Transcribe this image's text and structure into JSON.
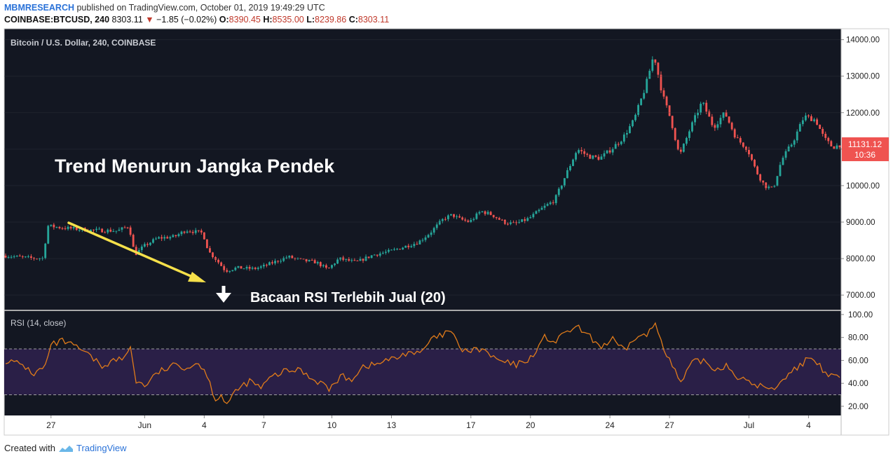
{
  "header": {
    "publisher": "MBMRESEARCH",
    "published_text": "published on TradingView.com, October 01, 2019 19:49:29 UTC",
    "symbol": "COINBASE:BTCUSD, 240",
    "last": "8303.11",
    "change_arrow": "▼",
    "change": "−1.85 (−0.02%)",
    "o_label": "O:",
    "o_val": "8390.45",
    "h_label": "H:",
    "h_val": "8535.00",
    "l_label": "L:",
    "l_val": "8239.86",
    "c_label": "C:",
    "c_val": "8303.11"
  },
  "footer": {
    "created_with": "Created with",
    "brand": "TradingView"
  },
  "colors": {
    "bg": "#131722",
    "up": "#26a69a",
    "down": "#ef5350",
    "rsi_line": "#e07b1a",
    "rsi_band": "#2a1f47",
    "arrow": "#f5e04a",
    "grid": "#363a45",
    "axis_text": "#222222"
  },
  "chart_data": {
    "type": "candlestick",
    "title": "Bitcoin / U.S. Dollar, 240, COINBASE",
    "price_axis": {
      "ticks": [
        7000,
        8000,
        9000,
        10000,
        11000,
        12000,
        13000,
        14000
      ],
      "tick_labels": [
        "7000.00",
        "8000.00",
        "9000.00",
        "10000.00",
        "11000.00",
        "12000.00",
        "13000.00",
        "14000.00"
      ],
      "range": [
        6600,
        14300
      ]
    },
    "price_label": "11131.12",
    "countdown_label": "10:36",
    "x_ticks": [
      "27",
      "Jun",
      "4",
      "7",
      "10",
      "13",
      "17",
      "20",
      "24",
      "27",
      "Jul",
      "4"
    ],
    "x_tick_index": [
      16,
      49,
      70,
      91,
      115,
      136,
      164,
      185,
      213,
      234,
      262,
      283
    ],
    "candle_count": 295,
    "close_anchors": [
      [
        0,
        8080
      ],
      [
        10,
        8010
      ],
      [
        14,
        8010
      ],
      [
        15,
        8900
      ],
      [
        20,
        8850
      ],
      [
        30,
        8780
      ],
      [
        40,
        8760
      ],
      [
        44,
        8900
      ],
      [
        46,
        8100
      ],
      [
        49,
        8330
      ],
      [
        54,
        8560
      ],
      [
        60,
        8600
      ],
      [
        64,
        8780
      ],
      [
        70,
        8700
      ],
      [
        72,
        8200
      ],
      [
        75,
        7950
      ],
      [
        78,
        7660
      ],
      [
        82,
        7750
      ],
      [
        88,
        7720
      ],
      [
        91,
        7780
      ],
      [
        95,
        7900
      ],
      [
        100,
        8050
      ],
      [
        105,
        7950
      ],
      [
        110,
        7900
      ],
      [
        114,
        7700
      ],
      [
        118,
        8000
      ],
      [
        124,
        7900
      ],
      [
        130,
        8100
      ],
      [
        136,
        8200
      ],
      [
        140,
        8300
      ],
      [
        146,
        8450
      ],
      [
        150,
        8700
      ],
      [
        155,
        9100
      ],
      [
        158,
        9200
      ],
      [
        160,
        9100
      ],
      [
        164,
        9000
      ],
      [
        168,
        9300
      ],
      [
        172,
        9200
      ],
      [
        176,
        9000
      ],
      [
        180,
        8950
      ],
      [
        185,
        9100
      ],
      [
        190,
        9400
      ],
      [
        194,
        9600
      ],
      [
        198,
        10300
      ],
      [
        202,
        11000
      ],
      [
        206,
        10800
      ],
      [
        210,
        10750
      ],
      [
        214,
        11000
      ],
      [
        218,
        11300
      ],
      [
        222,
        11800
      ],
      [
        226,
        12700
      ],
      [
        229,
        13600
      ],
      [
        232,
        12500
      ],
      [
        235,
        11800
      ],
      [
        238,
        10800
      ],
      [
        242,
        11600
      ],
      [
        246,
        12300
      ],
      [
        250,
        11600
      ],
      [
        254,
        12000
      ],
      [
        258,
        11300
      ],
      [
        262,
        11000
      ],
      [
        265,
        10400
      ],
      [
        268,
        10000
      ],
      [
        271,
        9900
      ],
      [
        274,
        10700
      ],
      [
        278,
        11200
      ],
      [
        282,
        11900
      ],
      [
        286,
        11800
      ],
      [
        289,
        11300
      ],
      [
        292,
        11050
      ],
      [
        295,
        11131
      ]
    ],
    "rsi": {
      "label": "RSI (14, close)",
      "ticks": [
        20,
        40,
        60,
        80,
        100
      ],
      "tick_labels": [
        "20.00",
        "40.00",
        "60.00",
        "80.00",
        "100.00"
      ],
      "range": [
        12,
        103
      ],
      "upper_band": 70,
      "lower_band": 30,
      "anchors": [
        [
          0,
          60
        ],
        [
          6,
          56
        ],
        [
          10,
          48
        ],
        [
          14,
          55
        ],
        [
          16,
          73
        ],
        [
          20,
          77
        ],
        [
          26,
          70
        ],
        [
          30,
          63
        ],
        [
          34,
          55
        ],
        [
          38,
          60
        ],
        [
          42,
          62
        ],
        [
          44,
          72
        ],
        [
          46,
          42
        ],
        [
          49,
          38
        ],
        [
          54,
          50
        ],
        [
          60,
          56
        ],
        [
          64,
          54
        ],
        [
          68,
          58
        ],
        [
          70,
          52
        ],
        [
          72,
          40
        ],
        [
          74,
          26
        ],
        [
          76,
          30
        ],
        [
          78,
          22
        ],
        [
          82,
          35
        ],
        [
          86,
          42
        ],
        [
          90,
          36
        ],
        [
          94,
          46
        ],
        [
          98,
          50
        ],
        [
          104,
          52
        ],
        [
          108,
          44
        ],
        [
          112,
          40
        ],
        [
          114,
          34
        ],
        [
          118,
          46
        ],
        [
          122,
          44
        ],
        [
          126,
          55
        ],
        [
          130,
          56
        ],
        [
          134,
          60
        ],
        [
          138,
          62
        ],
        [
          142,
          68
        ],
        [
          146,
          65
        ],
        [
          150,
          78
        ],
        [
          154,
          82
        ],
        [
          157,
          86
        ],
        [
          160,
          70
        ],
        [
          164,
          68
        ],
        [
          168,
          70
        ],
        [
          172,
          62
        ],
        [
          176,
          58
        ],
        [
          180,
          56
        ],
        [
          185,
          62
        ],
        [
          190,
          80
        ],
        [
          194,
          76
        ],
        [
          198,
          86
        ],
        [
          202,
          88
        ],
        [
          206,
          80
        ],
        [
          210,
          72
        ],
        [
          214,
          78
        ],
        [
          218,
          68
        ],
        [
          222,
          80
        ],
        [
          226,
          82
        ],
        [
          229,
          92
        ],
        [
          232,
          72
        ],
        [
          235,
          55
        ],
        [
          238,
          40
        ],
        [
          242,
          58
        ],
        [
          246,
          60
        ],
        [
          250,
          52
        ],
        [
          254,
          56
        ],
        [
          258,
          46
        ],
        [
          262,
          40
        ],
        [
          266,
          38
        ],
        [
          270,
          34
        ],
        [
          274,
          44
        ],
        [
          278,
          52
        ],
        [
          282,
          60
        ],
        [
          286,
          58
        ],
        [
          289,
          48
        ],
        [
          292,
          46
        ],
        [
          295,
          46
        ]
      ]
    },
    "annotations": [
      {
        "text": "Trend Menurun Jangka Pendek"
      },
      {
        "text": "Bacaan RSI Terlebih Jual (20)"
      }
    ]
  }
}
